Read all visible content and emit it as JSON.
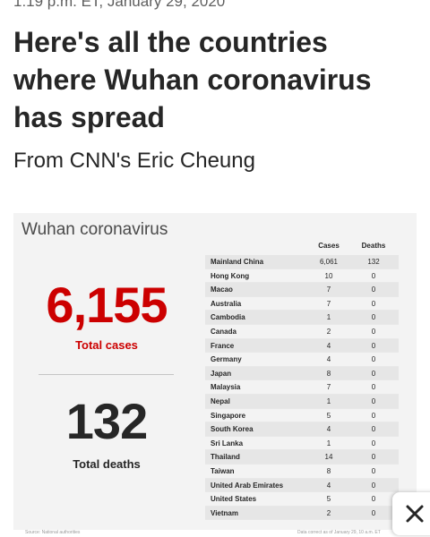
{
  "article": {
    "timestamp": "1:19 p.m. ET, January 29, 2020",
    "headline": "Here's all the countries where Wuhan coronavirus has spread",
    "byline": "From CNN's Eric Cheung"
  },
  "graphic": {
    "title": "Wuhan coronavirus",
    "total_cases": "6,155",
    "total_cases_label": "Total cases",
    "total_deaths": "132",
    "total_deaths_label": "Total deaths",
    "colors": {
      "cases": "#cc0000",
      "text": "#262626",
      "background": "#f3f3f3"
    },
    "table": {
      "headers": {
        "cases": "Cases",
        "deaths": "Deaths"
      },
      "rows": [
        {
          "country": "Mainland China",
          "cases": "6,061",
          "deaths": "132"
        },
        {
          "country": "Hong Kong",
          "cases": "10",
          "deaths": "0"
        },
        {
          "country": "Macao",
          "cases": "7",
          "deaths": "0"
        },
        {
          "country": "Australia",
          "cases": "7",
          "deaths": "0"
        },
        {
          "country": "Cambodia",
          "cases": "1",
          "deaths": "0"
        },
        {
          "country": "Canada",
          "cases": "2",
          "deaths": "0"
        },
        {
          "country": "France",
          "cases": "4",
          "deaths": "0"
        },
        {
          "country": "Germany",
          "cases": "4",
          "deaths": "0"
        },
        {
          "country": "Japan",
          "cases": "8",
          "deaths": "0"
        },
        {
          "country": "Malaysia",
          "cases": "7",
          "deaths": "0"
        },
        {
          "country": "Nepal",
          "cases": "1",
          "deaths": "0"
        },
        {
          "country": "Singapore",
          "cases": "5",
          "deaths": "0"
        },
        {
          "country": "South Korea",
          "cases": "4",
          "deaths": "0"
        },
        {
          "country": "Sri Lanka",
          "cases": "1",
          "deaths": "0"
        },
        {
          "country": "Thailand",
          "cases": "14",
          "deaths": "0"
        },
        {
          "country": "Taiwan",
          "cases": "8",
          "deaths": "0"
        },
        {
          "country": "United Arab Emirates",
          "cases": "4",
          "deaths": "0"
        },
        {
          "country": "United States",
          "cases": "5",
          "deaths": "0"
        },
        {
          "country": "Vietnam",
          "cases": "2",
          "deaths": "0"
        }
      ]
    },
    "footer": {
      "source": "Source: National authorities",
      "updated": "Data correct as of January 29, 10 a.m. ET"
    }
  },
  "overlay": {
    "close_icon": "close-icon"
  }
}
